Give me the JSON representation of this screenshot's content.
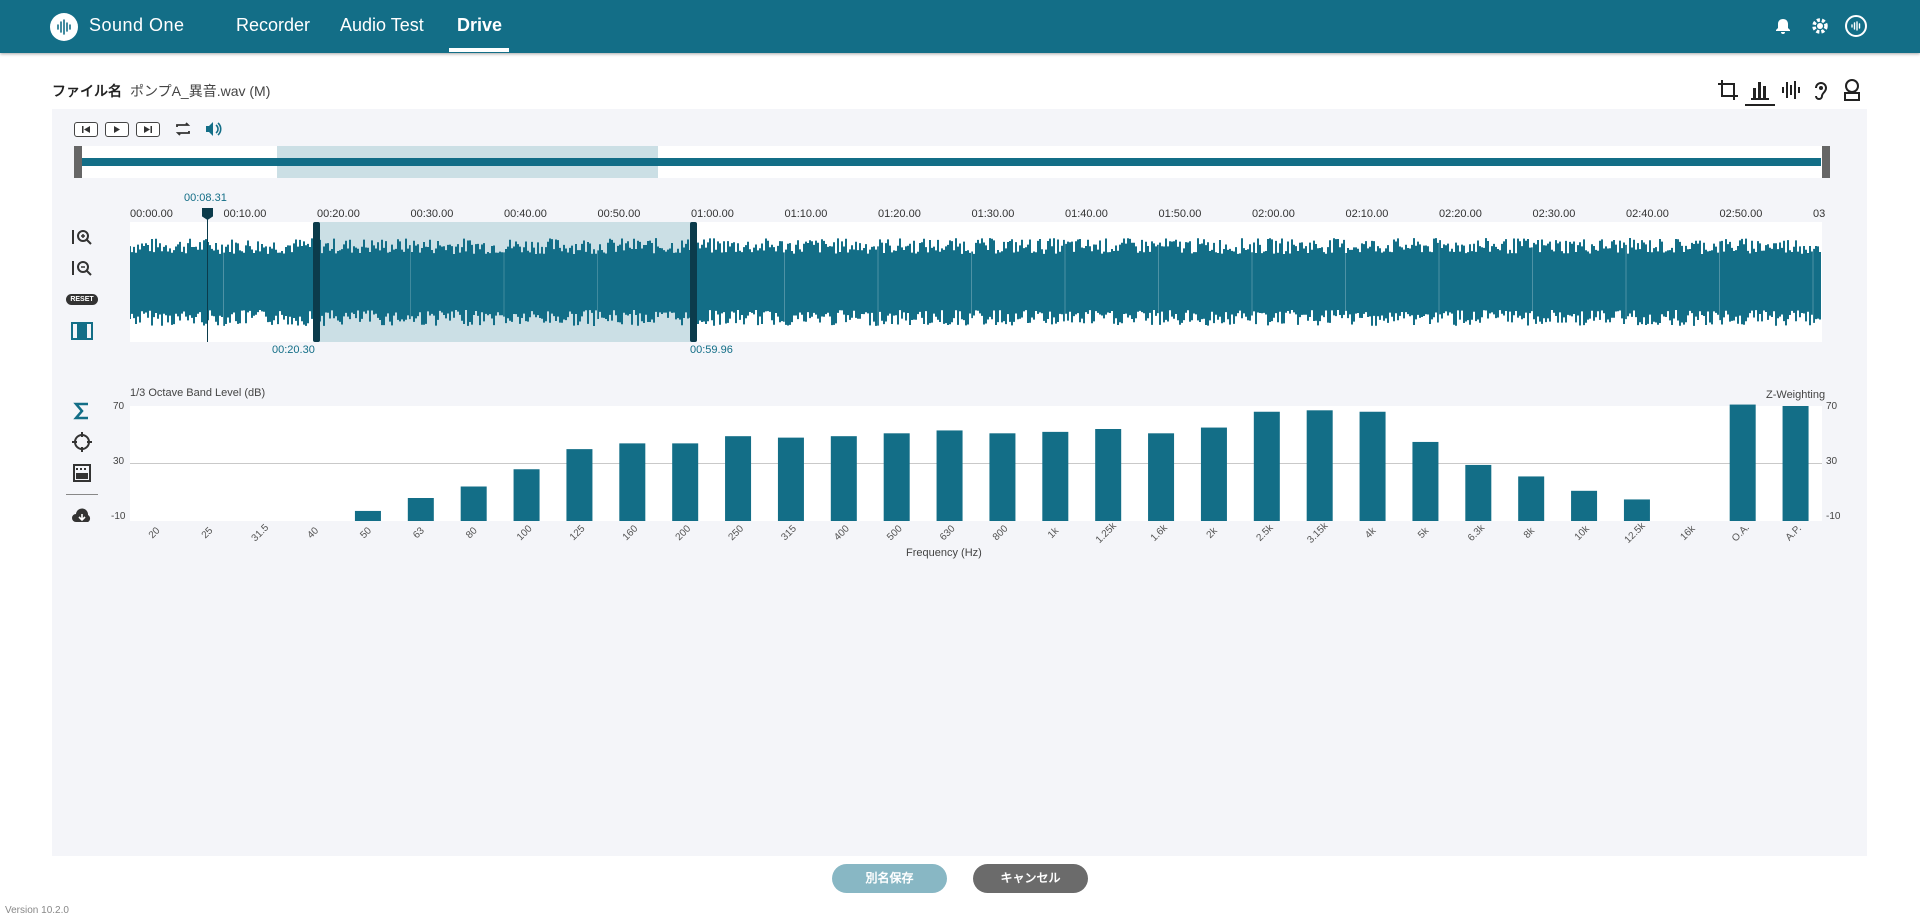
{
  "header": {
    "brand": "Sound One",
    "nav": [
      {
        "label": "Recorder"
      },
      {
        "label": "Audio Test"
      },
      {
        "label": "Drive"
      }
    ],
    "active_nav": "Drive"
  },
  "file": {
    "label": "ファイル名",
    "name": "ポンプA_異音.wav (M)"
  },
  "view_icons": [
    "crop-icon",
    "bar-chart-icon",
    "waveform-icon",
    "hearing-icon",
    "noise-icon"
  ],
  "transport": {
    "buttons": [
      "skip-back-icon",
      "play-icon",
      "skip-forward-icon",
      "repeat-icon",
      "volume-icon"
    ]
  },
  "timeline": {
    "ticks": [
      "00:00.00",
      "00:10.00",
      "00:20.00",
      "00:30.00",
      "00:40.00",
      "00:50.00",
      "01:00.00",
      "01:10.00",
      "01:20.00",
      "01:30.00",
      "01:40.00",
      "01:50.00",
      "02:00.00",
      "02:10.00",
      "02:20.00",
      "02:30.00",
      "02:40.00",
      "02:50.00",
      "03"
    ],
    "cursor_time": "00:08.31",
    "selection_start": "00:20.30",
    "selection_end": "00:59.96"
  },
  "zoom": {
    "reset_label": "RESET"
  },
  "colors": {
    "brand": "#136e87",
    "bar": "#136e87",
    "save_button": "#88b7c4",
    "cancel_button": "#6b6b6b"
  },
  "chart_data": {
    "type": "bar",
    "title": "1/3 Octave Band Level (dB)",
    "weighting": "Z-Weighting",
    "xlabel": "Frequency (Hz)",
    "ylim": [
      -10,
      70
    ],
    "yticks": [
      "70",
      "30",
      "-10"
    ],
    "grid": true,
    "categories": [
      "20",
      "25",
      "31.5",
      "40",
      "50",
      "63",
      "80",
      "100",
      "125",
      "160",
      "200",
      "250",
      "315",
      "400",
      "500",
      "630",
      "800",
      "1k",
      "1.25k",
      "1.6k",
      "2k",
      "2.5k",
      "3.15k",
      "4k",
      "5k",
      "6.3k",
      "8k",
      "10k",
      "12.5k",
      "16k",
      "O.A.",
      "A.P."
    ],
    "values": [
      -10,
      -10,
      -10,
      -10,
      -3,
      6,
      14,
      26,
      40,
      44,
      44,
      49,
      48,
      49,
      51,
      53,
      51,
      52,
      54,
      51,
      55,
      66,
      67,
      66,
      45,
      29,
      21,
      11,
      5,
      -10,
      71,
      70
    ]
  },
  "buttons": {
    "save_as": "別名保存",
    "cancel": "キャンセル"
  },
  "version": "Version 10.2.0"
}
